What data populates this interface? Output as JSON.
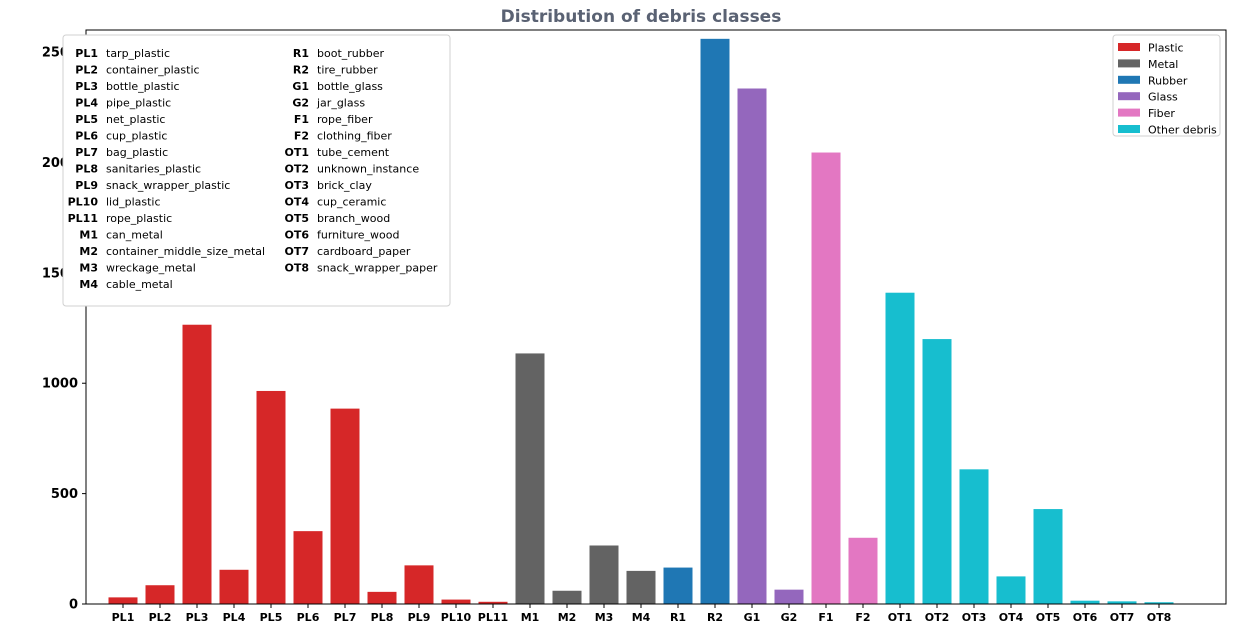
{
  "chart_data": {
    "type": "bar",
    "title": "Distribution of debris classes",
    "xlabel": "",
    "ylabel": "",
    "ylim": [
      0,
      2600
    ],
    "yticks": [
      0,
      500,
      1000,
      1500,
      2000,
      2500
    ],
    "grid": false,
    "legend_position": "top-right",
    "categories": [
      "PL1",
      "PL2",
      "PL3",
      "PL4",
      "PL5",
      "PL6",
      "PL7",
      "PL8",
      "PL9",
      "PL10",
      "PL11",
      "M1",
      "M2",
      "M3",
      "M4",
      "R1",
      "R2",
      "G1",
      "G2",
      "F1",
      "F2",
      "OT1",
      "OT2",
      "OT3",
      "OT4",
      "OT5",
      "OT6",
      "OT7",
      "OT8"
    ],
    "values": [
      30,
      85,
      1265,
      155,
      965,
      330,
      885,
      55,
      175,
      20,
      10,
      1135,
      60,
      265,
      150,
      165,
      2560,
      2335,
      65,
      2045,
      300,
      1410,
      1200,
      610,
      125,
      430,
      15,
      12,
      8
    ],
    "groups": [
      "Plastic",
      "Plastic",
      "Plastic",
      "Plastic",
      "Plastic",
      "Plastic",
      "Plastic",
      "Plastic",
      "Plastic",
      "Plastic",
      "Plastic",
      "Metal",
      "Metal",
      "Metal",
      "Metal",
      "Rubber",
      "Rubber",
      "Glass",
      "Glass",
      "Fiber",
      "Fiber",
      "Other debris",
      "Other debris",
      "Other debris",
      "Other debris",
      "Other debris",
      "Other debris",
      "Other debris",
      "Other debris"
    ],
    "series_legend": [
      {
        "name": "Plastic",
        "color": "#d62728"
      },
      {
        "name": "Metal",
        "color": "#636363"
      },
      {
        "name": "Rubber",
        "color": "#1f77b4"
      },
      {
        "name": "Glass",
        "color": "#9467bd"
      },
      {
        "name": "Fiber",
        "color": "#e377c2"
      },
      {
        "name": "Other debris",
        "color": "#17becf"
      }
    ],
    "class_key": [
      {
        "code": "PL1",
        "name": "tarp_plastic"
      },
      {
        "code": "PL2",
        "name": "container_plastic"
      },
      {
        "code": "PL3",
        "name": "bottle_plastic"
      },
      {
        "code": "PL4",
        "name": "pipe_plastic"
      },
      {
        "code": "PL5",
        "name": "net_plastic"
      },
      {
        "code": "PL6",
        "name": "cup_plastic"
      },
      {
        "code": "PL7",
        "name": "bag_plastic"
      },
      {
        "code": "PL8",
        "name": "sanitaries_plastic"
      },
      {
        "code": "PL9",
        "name": "snack_wrapper_plastic"
      },
      {
        "code": "PL10",
        "name": "lid_plastic"
      },
      {
        "code": "PL11",
        "name": "rope_plastic"
      },
      {
        "code": "M1",
        "name": "can_metal"
      },
      {
        "code": "M2",
        "name": "container_middle_size_metal"
      },
      {
        "code": "M3",
        "name": "wreckage_metal"
      },
      {
        "code": "M4",
        "name": "cable_metal"
      },
      {
        "code": "R1",
        "name": "boot_rubber"
      },
      {
        "code": "R2",
        "name": "tire_rubber"
      },
      {
        "code": "G1",
        "name": "bottle_glass"
      },
      {
        "code": "G2",
        "name": "jar_glass"
      },
      {
        "code": "F1",
        "name": "rope_fiber"
      },
      {
        "code": "F2",
        "name": "clothing_fiber"
      },
      {
        "code": "OT1",
        "name": "tube_cement"
      },
      {
        "code": "OT2",
        "name": "unknown_instance"
      },
      {
        "code": "OT3",
        "name": "brick_clay"
      },
      {
        "code": "OT4",
        "name": "cup_ceramic"
      },
      {
        "code": "OT5",
        "name": "branch_wood"
      },
      {
        "code": "OT6",
        "name": "furniture_wood"
      },
      {
        "code": "OT7",
        "name": "cardboard_paper"
      },
      {
        "code": "OT8",
        "name": "snack_wrapper_paper"
      }
    ]
  }
}
